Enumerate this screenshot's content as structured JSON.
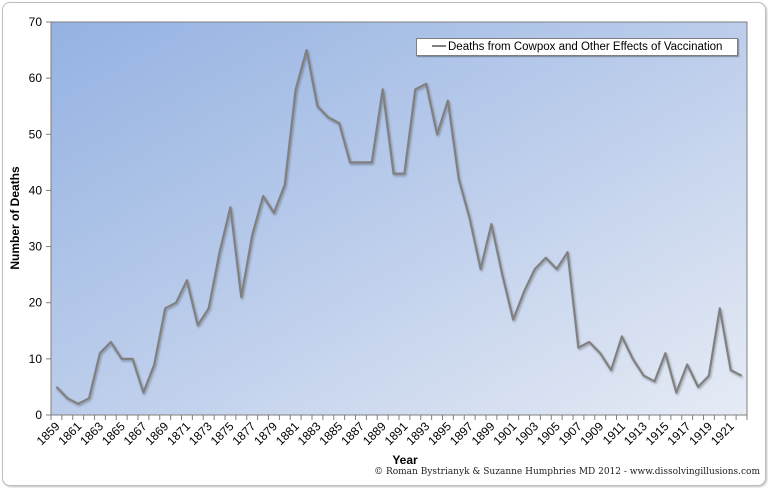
{
  "chart_data": {
    "type": "line",
    "title": "",
    "xlabel": "Year",
    "ylabel": "Number of Deaths",
    "ylim": [
      0,
      70
    ],
    "yticks": [
      0,
      10,
      20,
      30,
      40,
      50,
      60,
      70
    ],
    "xtick_labels": [
      "1859",
      "1861",
      "1863",
      "1865",
      "1867",
      "1869",
      "1871",
      "1873",
      "1875",
      "1877",
      "1879",
      "1881",
      "1883",
      "1885",
      "1887",
      "1889",
      "1891",
      "1893",
      "1895",
      "1897",
      "1899",
      "1901",
      "1903",
      "1905",
      "1907",
      "1909",
      "1911",
      "1913",
      "1915",
      "1917",
      "1919",
      "1921"
    ],
    "grid": false,
    "legend_position": "top-right",
    "x": [
      1859,
      1860,
      1861,
      1862,
      1863,
      1864,
      1865,
      1866,
      1867,
      1868,
      1869,
      1870,
      1871,
      1872,
      1873,
      1874,
      1875,
      1876,
      1877,
      1878,
      1879,
      1880,
      1881,
      1882,
      1883,
      1884,
      1885,
      1886,
      1887,
      1888,
      1889,
      1890,
      1891,
      1892,
      1893,
      1894,
      1895,
      1896,
      1897,
      1898,
      1899,
      1900,
      1901,
      1902,
      1903,
      1904,
      1905,
      1906,
      1907,
      1908,
      1909,
      1910,
      1911,
      1912,
      1913,
      1914,
      1915,
      1916,
      1917,
      1918,
      1919,
      1920,
      1921,
      1922
    ],
    "series": [
      {
        "name": "Deaths from Cowpox and Other Effects of Vaccination",
        "color": "#808080",
        "values": [
          5,
          3,
          2,
          3,
          11,
          13,
          10,
          10,
          4,
          9,
          19,
          20,
          24,
          16,
          19,
          29,
          37,
          21,
          32,
          39,
          36,
          41,
          58,
          65,
          55,
          53,
          52,
          45,
          45,
          45,
          58,
          43,
          43,
          58,
          59,
          50,
          56,
          42,
          35,
          26,
          34,
          25,
          17,
          22,
          26,
          28,
          26,
          29,
          12,
          13,
          11,
          8,
          14,
          10,
          7,
          6,
          11,
          4,
          9,
          5,
          7,
          19,
          8,
          7
        ]
      }
    ]
  },
  "legend": {
    "label": "Deaths from Cowpox and Other Effects of Vaccination"
  },
  "footer": {
    "credit": "© Roman Bystrianyk & Suzanne Humphries MD 2012 - www.dissolvingillusions.com"
  },
  "colors": {
    "plot_gradient_start": "#95b3e3",
    "plot_gradient_end": "#e4eaf5",
    "line": "#808080",
    "axis": "#7f7f7f"
  }
}
